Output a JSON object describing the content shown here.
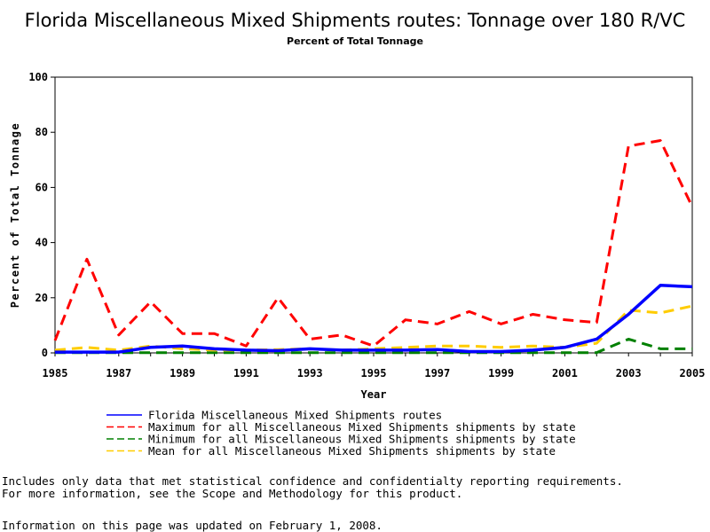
{
  "chart_data": {
    "type": "line",
    "title": "Florida Miscellaneous Mixed Shipments routes: Tonnage over 180 R/VC",
    "subtitle": "Percent of Total Tonnage",
    "xlabel": "Year",
    "ylabel": "Percent of Total Tonnage",
    "xlim": [
      1985,
      2005
    ],
    "ylim": [
      0,
      100
    ],
    "x_ticks": [
      1985,
      1987,
      1989,
      1991,
      1993,
      1995,
      1997,
      1999,
      2001,
      2003,
      2005
    ],
    "y_ticks": [
      0,
      20,
      40,
      60,
      80,
      100
    ],
    "grid": false,
    "legend_position": "bottom",
    "x": [
      1985,
      1986,
      1987,
      1988,
      1989,
      1990,
      1991,
      1992,
      1993,
      1994,
      1995,
      1996,
      1997,
      1998,
      1999,
      2000,
      2001,
      2002,
      2003,
      2004,
      2005
    ],
    "series": [
      {
        "name": "Florida Miscellaneous Mixed Shipments routes",
        "color": "#0000ff",
        "dash": "solid",
        "values": [
          0.3,
          0.3,
          0.3,
          2.0,
          2.5,
          1.5,
          1.0,
          0.8,
          1.5,
          1.0,
          1.0,
          1.0,
          1.2,
          0.5,
          0.5,
          1.0,
          2.0,
          5.0,
          14.0,
          24.5,
          24.0
        ]
      },
      {
        "name": "Maximum for all Miscellaneous Mixed Shipments shipments by state",
        "color": "#ff0000",
        "dash": "dashed",
        "values": [
          4.5,
          34.0,
          6.5,
          18.5,
          7.0,
          7.0,
          2.5,
          20.0,
          5.0,
          6.5,
          2.5,
          12.0,
          10.5,
          15.0,
          10.5,
          14.0,
          12.0,
          11.0,
          75.0,
          77.0,
          53.0
        ]
      },
      {
        "name": "Minimum for all Miscellaneous Mixed Shipments shipments by state",
        "color": "#008000",
        "dash": "dashed",
        "values": [
          0.1,
          0.1,
          0.1,
          0.1,
          0.1,
          0.1,
          0.1,
          0.1,
          0.1,
          0.1,
          0.1,
          0.1,
          0.1,
          0.1,
          0.1,
          0.1,
          0.1,
          0.1,
          5.0,
          1.5,
          1.5
        ]
      },
      {
        "name": "Mean for all Miscellaneous Mixed Shipments shipments by state",
        "color": "#ffcc00",
        "dash": "dashed",
        "values": [
          1.0,
          2.0,
          1.0,
          2.5,
          1.5,
          1.0,
          1.0,
          1.2,
          1.5,
          1.0,
          1.5,
          2.0,
          2.5,
          2.5,
          2.0,
          2.5,
          2.0,
          3.5,
          15.5,
          14.5,
          17.0
        ]
      }
    ]
  },
  "notes": {
    "line1": "Includes only data that met statistical confidence and confidentialty reporting requirements.",
    "line2": "For more information, see the Scope and Methodology for this product.",
    "updated": "Information on this page was updated on February 1, 2008."
  }
}
